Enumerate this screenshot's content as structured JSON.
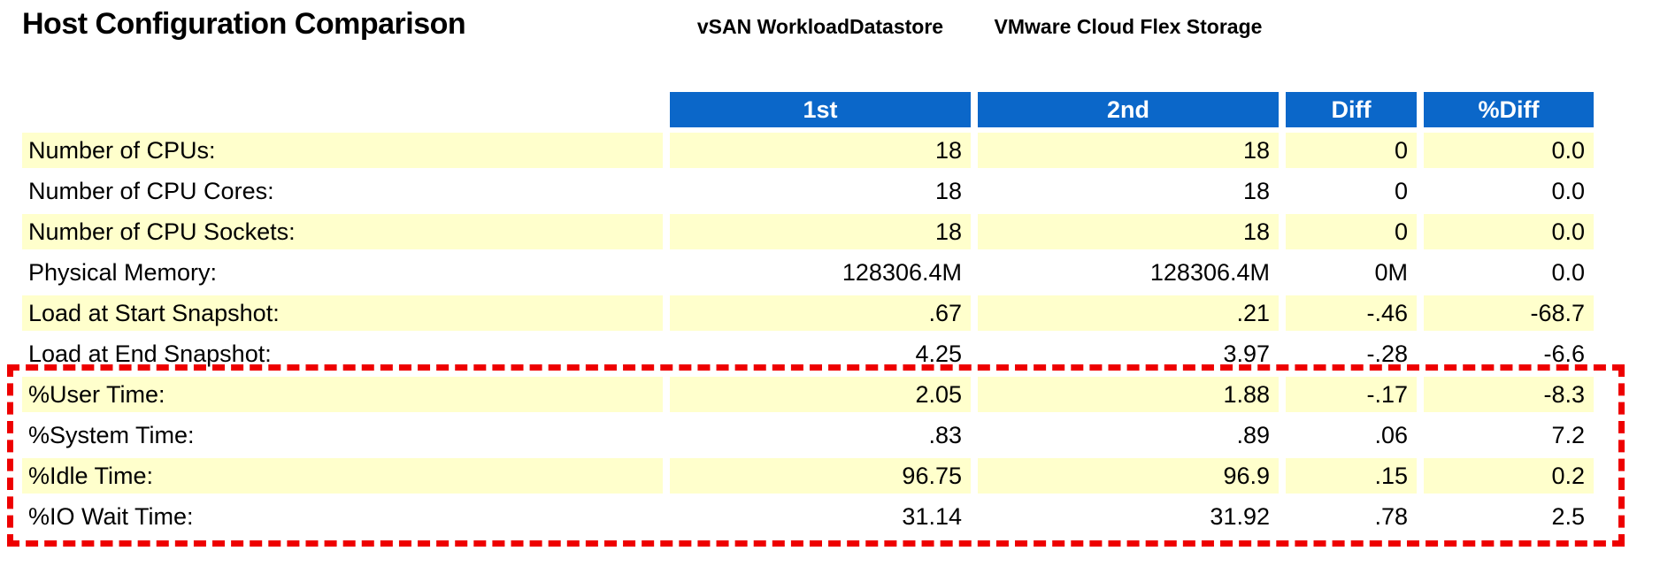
{
  "title": "Host Configuration Comparison",
  "datastores": {
    "first": "vSAN WorkloadDatastore",
    "second": "VMware Cloud Flex Storage"
  },
  "table": {
    "columns": [
      "1st",
      "2nd",
      "Diff",
      "%Diff"
    ],
    "rows": [
      {
        "label": "Number of CPUs:",
        "values": [
          "18",
          "18",
          "0",
          "0.0"
        ],
        "highlighted": false
      },
      {
        "label": "Number of CPU Cores:",
        "values": [
          "18",
          "18",
          "0",
          "0.0"
        ],
        "highlighted": false
      },
      {
        "label": "Number of CPU Sockets:",
        "values": [
          "18",
          "18",
          "0",
          "0.0"
        ],
        "highlighted": false
      },
      {
        "label": "Physical Memory:",
        "values": [
          "128306.4M",
          "128306.4M",
          "0M",
          "0.0"
        ],
        "highlighted": false
      },
      {
        "label": "Load at Start Snapshot:",
        "values": [
          ".67",
          ".21",
          "-.46",
          "-68.7"
        ],
        "highlighted": false
      },
      {
        "label": "Load at End Snapshot:",
        "values": [
          "4.25",
          "3.97",
          "-.28",
          "-6.6"
        ],
        "highlighted": false
      },
      {
        "label": "%User Time:",
        "values": [
          "2.05",
          "1.88",
          "-.17",
          "-8.3"
        ],
        "highlighted": true
      },
      {
        "label": "%System Time:",
        "values": [
          ".83",
          ".89",
          ".06",
          "7.2"
        ],
        "highlighted": true
      },
      {
        "label": "%Idle Time:",
        "values": [
          "96.75",
          "96.9",
          ".15",
          "0.2"
        ],
        "highlighted": true
      },
      {
        "label": "%IO Wait Time:",
        "values": [
          "31.14",
          "31.92",
          ".78",
          "2.5"
        ],
        "highlighted": true
      }
    ]
  },
  "colors": {
    "header_bg": "#0B67C9",
    "header_text": "#FFFFFF",
    "row_alt_bg": "#FFFFCC",
    "highlight_border": "#EE0000",
    "text_color": "#000000",
    "page_bg": "#FFFFFF"
  }
}
